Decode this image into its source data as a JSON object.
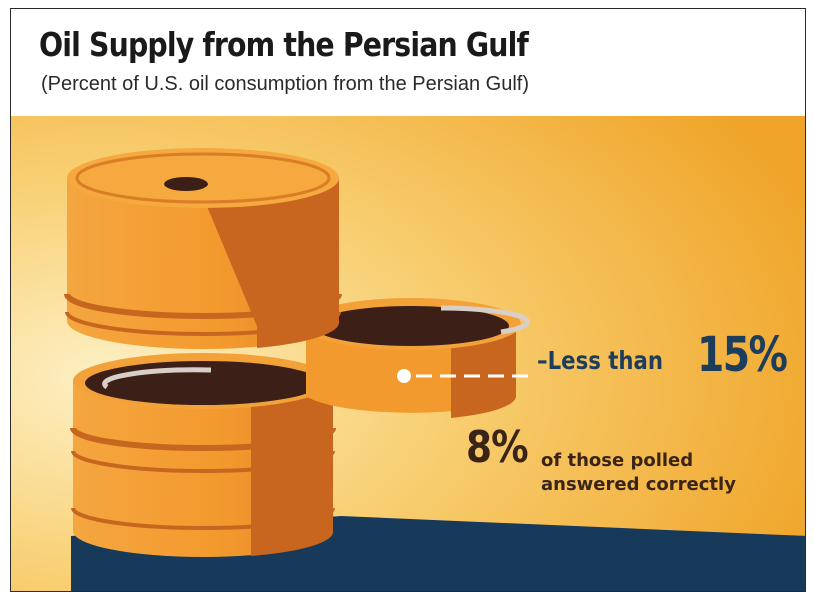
{
  "header": {
    "title": "Oil Supply from the Persian Gulf",
    "subtitle": "(Percent of U.S. oil consumption from the Persian Gulf)"
  },
  "answer": {
    "prefix": "–Less than",
    "value": "15%"
  },
  "poll": {
    "percent": "8%",
    "line1": "of those polled",
    "line2": "answered correctly"
  },
  "colors": {
    "background_light": "#fbe3a0",
    "background_dark": "#f1a92a",
    "barrel_orange": "#f29a2e",
    "barrel_shadow": "#c8661f",
    "oil": "#3c2018",
    "floor": "#173a5a",
    "text_blue": "#1c3e5c",
    "text_brown": "#3a2418"
  }
}
